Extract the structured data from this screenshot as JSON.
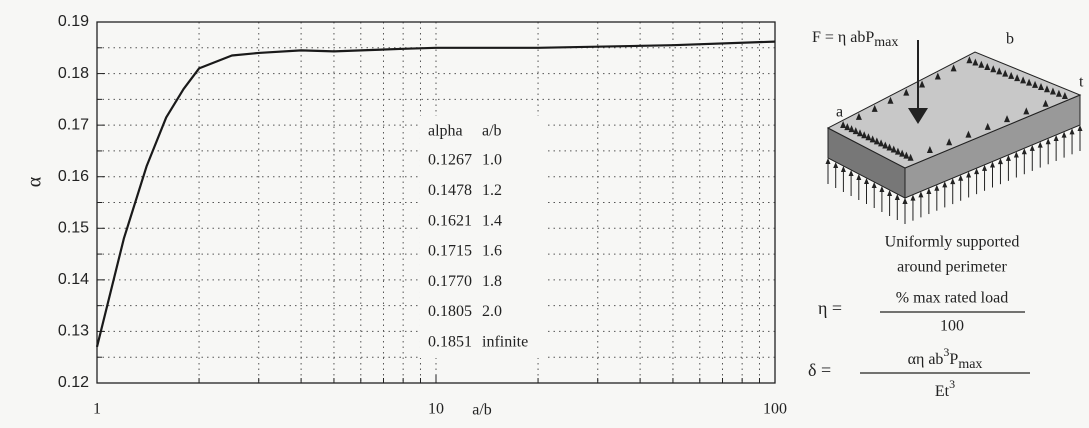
{
  "chart_data": {
    "type": "line",
    "xlabel": "a/b",
    "ylabel": "α",
    "xscale": "log",
    "xlim": [
      1,
      100
    ],
    "xticks": [
      1,
      10,
      100
    ],
    "xminorticks": [
      2,
      3,
      4,
      5,
      6,
      7,
      8,
      9,
      20,
      30,
      40,
      50,
      60,
      70,
      80,
      90
    ],
    "ylim": [
      0.12,
      0.19
    ],
    "yticks": [
      0.12,
      0.13,
      0.14,
      0.15,
      0.16,
      0.17,
      0.18,
      0.19
    ],
    "yminorticks": [
      0.125,
      0.135,
      0.145,
      0.155,
      0.165,
      0.175,
      0.185
    ],
    "grid": true,
    "color": "#1a1a1a",
    "x": [
      1,
      1.2,
      1.4,
      1.6,
      1.8,
      2,
      2.5,
      3,
      4,
      5,
      6,
      8,
      10,
      20,
      50,
      100
    ],
    "values": [
      0.127,
      0.148,
      0.162,
      0.1715,
      0.177,
      0.181,
      0.1835,
      0.184,
      0.1845,
      0.1843,
      0.1845,
      0.1848,
      0.185,
      0.185,
      0.1855,
      0.1862
    ],
    "table": {
      "header": [
        "alpha",
        "a/b"
      ],
      "rows": [
        [
          "0.1267",
          "1.0"
        ],
        [
          "0.1478",
          "1.2"
        ],
        [
          "0.1621",
          "1.4"
        ],
        [
          "0.1715",
          "1.6"
        ],
        [
          "0.1770",
          "1.8"
        ],
        [
          "0.1805",
          "2.0"
        ],
        [
          "0.1851",
          "infinite"
        ]
      ]
    }
  },
  "diagram": {
    "force": "F = η abP",
    "force_sub": "max",
    "label_a": "a",
    "label_b": "b",
    "label_t": "t",
    "caption": [
      "Uniformly supported",
      "around perimeter"
    ],
    "eta": "η  =",
    "eta_num": "% max rated load",
    "eta_den": "100",
    "delta": "δ =",
    "delta_num": "αη ab",
    "delta_num_sup": "3",
    "delta_num_p": "P",
    "delta_num_sub": "max",
    "delta_den": "Et",
    "delta_den_sup": "3"
  }
}
